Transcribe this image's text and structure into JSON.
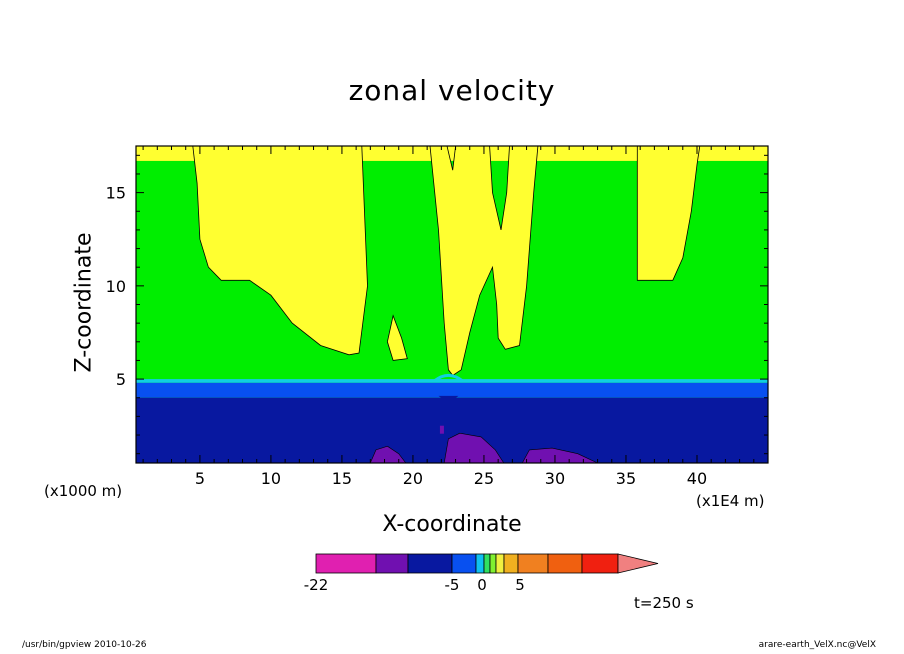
{
  "chart_data": {
    "type": "contour",
    "title": "zonal velocity",
    "xlabel": "X-coordinate",
    "ylabel": "Z-coordinate",
    "x_unit": "(x1E4 m)",
    "y_unit": "(x1000 m)",
    "xlim": [
      0.5,
      45
    ],
    "ylim": [
      0.5,
      17.5
    ],
    "x_ticks": [
      5,
      10,
      15,
      20,
      25,
      30,
      35,
      40
    ],
    "y_ticks": [
      5,
      10,
      15
    ],
    "time_label": "t=250 s",
    "colorbar": {
      "tick_labels": [
        {
          "label": "-22",
          "value": -22
        },
        {
          "label": "-5",
          "value": -5
        },
        {
          "label": "0",
          "value": 0
        },
        {
          "label": "5",
          "value": 5
        }
      ],
      "colors": [
        "#e020b0",
        "#7010b0",
        "#0818a0",
        "#0850f0",
        "#10c0f0",
        "#30e060",
        "#80f030",
        "#f0f040",
        "#f0b020",
        "#f08020",
        "#f06010",
        "#f02010",
        "#f08080"
      ]
    },
    "regions": {
      "background": "#00ee00",
      "negative_band": {
        "color": "#0818a0",
        "z_range": [
          0.5,
          4.0
        ]
      },
      "transition_band": {
        "color": "#0850f0",
        "z_range": [
          4.0,
          4.8
        ]
      },
      "cyan_line": {
        "color": "#10d0e0",
        "z_range": [
          4.8,
          5.0
        ]
      },
      "top_yellow_band": {
        "color": "#ffff30",
        "z_range": [
          16.7,
          17.5
        ]
      },
      "positive_patches": [
        {
          "color": "#ffff30",
          "outline": [
            [
              4.5,
              17.5
            ],
            [
              4.8,
              15.5
            ],
            [
              5.0,
              12.5
            ],
            [
              5.6,
              11.0
            ],
            [
              6.5,
              10.3
            ],
            [
              8.5,
              10.3
            ],
            [
              10,
              9.5
            ],
            [
              11.5,
              8.0
            ],
            [
              13.5,
              6.8
            ],
            [
              15.5,
              6.3
            ],
            [
              16.2,
              6.4
            ],
            [
              16.8,
              10
            ],
            [
              16.4,
              17.5
            ]
          ]
        },
        {
          "color": "#ffff30",
          "outline": [
            [
              18.2,
              7.0
            ],
            [
              18.6,
              8.4
            ],
            [
              19.2,
              7.2
            ],
            [
              19.6,
              6.1
            ],
            [
              18.6,
              6.0
            ]
          ]
        },
        {
          "color": "#ffff30",
          "outline": [
            [
              21.2,
              17.5
            ],
            [
              21.8,
              13
            ],
            [
              22.2,
              8
            ],
            [
              22.5,
              5.5
            ],
            [
              22.8,
              5.2
            ],
            [
              23.4,
              5.5
            ],
            [
              24.0,
              7.5
            ],
            [
              24.7,
              9.5
            ],
            [
              25.6,
              11.0
            ],
            [
              25.9,
              9.0
            ],
            [
              26.0,
              7.2
            ],
            [
              26.5,
              6.6
            ],
            [
              27.5,
              6.8
            ],
            [
              28.0,
              10
            ],
            [
              28.5,
              15
            ],
            [
              28.8,
              17.5
            ],
            [
              26.8,
              17.5
            ],
            [
              26.6,
              15
            ],
            [
              26.2,
              13
            ],
            [
              25.6,
              15
            ],
            [
              25.4,
              17.5
            ],
            [
              23.0,
              17.5
            ],
            [
              22.8,
              16.2
            ],
            [
              22.4,
              17.5
            ]
          ]
        },
        {
          "color": "#ffff30",
          "outline": [
            [
              35.8,
              17.5
            ],
            [
              35.8,
              10.3
            ],
            [
              38.3,
              10.3
            ],
            [
              39.0,
              11.5
            ],
            [
              39.6,
              14
            ],
            [
              40.0,
              16.5
            ],
            [
              40.2,
              17.5
            ]
          ]
        }
      ],
      "negative_patches": [
        {
          "color": "#7010b0",
          "outline": [
            [
              17.0,
              0.5
            ],
            [
              17.4,
              1.2
            ],
            [
              18.2,
              1.4
            ],
            [
              19.0,
              1.0
            ],
            [
              19.5,
              0.5
            ]
          ]
        },
        {
          "color": "#7010b0",
          "outline": [
            [
              22.2,
              0.5
            ],
            [
              22.5,
              1.8
            ],
            [
              23.3,
              2.1
            ],
            [
              24.8,
              1.9
            ],
            [
              25.8,
              1.2
            ],
            [
              26.4,
              0.5
            ]
          ]
        },
        {
          "color": "#7010b0",
          "outline": [
            [
              27.7,
              0.5
            ],
            [
              28.2,
              1.2
            ],
            [
              29.8,
              1.3
            ],
            [
              31.6,
              1.0
            ],
            [
              33.0,
              0.5
            ]
          ]
        }
      ]
    }
  },
  "footer": {
    "left": "/usr/bin/gpview   2010-10-26",
    "right": "arare-earth_VelX.nc@VelX"
  }
}
